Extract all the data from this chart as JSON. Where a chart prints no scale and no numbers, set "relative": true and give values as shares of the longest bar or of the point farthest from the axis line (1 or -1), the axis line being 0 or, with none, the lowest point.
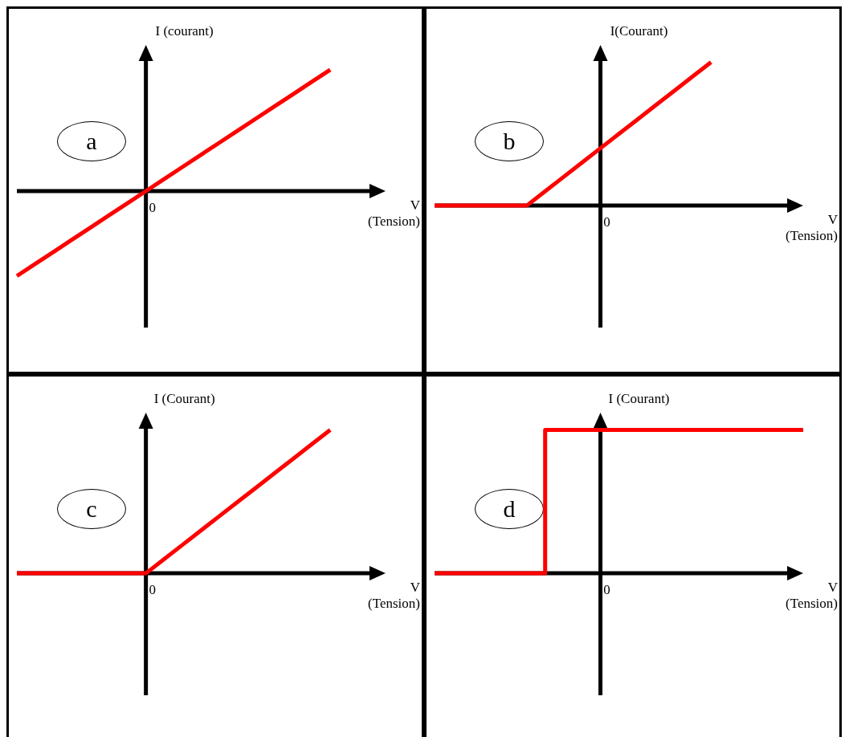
{
  "chart_data": [
    {
      "type": "line",
      "title": "a",
      "ylabel": "I (courant)",
      "xlabel": "V (Tension)",
      "annotations": [
        "0"
      ],
      "relative": true,
      "color": "#ff0000",
      "categories": [
        null,
        null,
        null,
        null,
        null,
        null,
        null,
        null,
        null,
        null,
        null,
        null,
        null,
        null,
        null,
        null,
        null,
        null,
        null,
        null,
        null
      ],
      "values": [
        -0.7,
        -0.6,
        -0.5,
        -0.4,
        -0.3,
        -0.2,
        -0.1,
        0,
        0.1,
        0.2,
        0.3,
        0.4,
        0.5,
        0.6,
        0.7,
        0.8,
        0.9,
        1.0,
        null,
        null,
        null
      ]
    },
    {
      "type": "line",
      "title": "b",
      "ylabel": "I(Courant)",
      "xlabel": "V (Tension)",
      "annotations": [
        "0"
      ],
      "relative": true,
      "color": "#ff0000",
      "categories": [
        null,
        null,
        null,
        null,
        null,
        null,
        null,
        null,
        null,
        null,
        null,
        null,
        null,
        null,
        null,
        null,
        null,
        null,
        null,
        null,
        null
      ],
      "values": [
        0,
        0,
        0,
        0,
        0,
        0,
        0.1,
        0.2,
        0.3,
        0.4,
        0.5,
        0.6,
        0.7,
        0.8,
        0.9,
        1.0,
        null,
        null,
        null,
        null,
        null
      ]
    },
    {
      "type": "line",
      "title": "c",
      "ylabel": "I  (Courant)",
      "xlabel": "V (Tension)",
      "annotations": [
        "0"
      ],
      "relative": true,
      "color": "#ff0000",
      "categories": [
        null,
        null,
        null,
        null,
        null,
        null,
        null,
        null,
        null,
        null,
        null,
        null,
        null,
        null,
        null,
        null,
        null,
        null,
        null,
        null,
        null
      ],
      "values": [
        0,
        0,
        0,
        0,
        0,
        0,
        0,
        0,
        0.1,
        0.2,
        0.3,
        0.4,
        0.5,
        0.6,
        0.7,
        0.8,
        0.9,
        1.0,
        null,
        null,
        null
      ]
    },
    {
      "type": "step",
      "title": "d",
      "ylabel": "I  (Courant)",
      "xlabel": "V (Tension)",
      "annotations": [
        "0"
      ],
      "relative": true,
      "color": "#ff0000",
      "categories": [
        null,
        null,
        null,
        null,
        null,
        null,
        null,
        null,
        null,
        null,
        null,
        null,
        null,
        null,
        null,
        null,
        null,
        null,
        null,
        null,
        null
      ],
      "values": [
        0,
        0,
        0,
        0,
        0,
        0,
        1,
        1,
        1,
        1,
        1,
        1,
        1,
        1,
        1,
        1,
        1,
        1,
        1,
        1,
        1
      ]
    }
  ]
}
